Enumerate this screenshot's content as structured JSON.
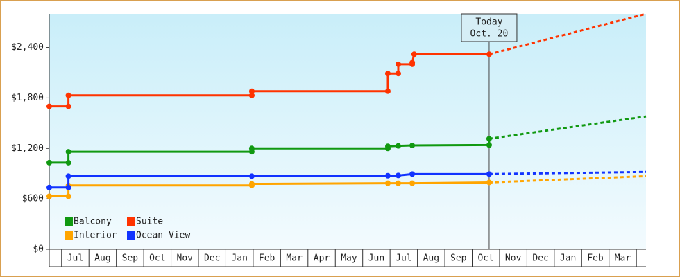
{
  "chart_data": {
    "type": "line",
    "annotation": {
      "x": 15.62,
      "lines": [
        "Today",
        "Oct. 20"
      ]
    },
    "xlim": [
      -0.45,
      21.35
    ],
    "xticks": [
      {
        "value": 0.5,
        "label": "Jul"
      },
      {
        "value": 1.5,
        "label": "Aug"
      },
      {
        "value": 2.5,
        "label": "Sep"
      },
      {
        "value": 3.5,
        "label": "Oct"
      },
      {
        "value": 4.5,
        "label": "Nov"
      },
      {
        "value": 5.5,
        "label": "Dec"
      },
      {
        "value": 6.5,
        "label": "Jan"
      },
      {
        "value": 7.5,
        "label": "Feb"
      },
      {
        "value": 8.5,
        "label": "Mar"
      },
      {
        "value": 9.5,
        "label": "Apr"
      },
      {
        "value": 10.5,
        "label": "May"
      },
      {
        "value": 11.5,
        "label": "Jun"
      },
      {
        "value": 12.5,
        "label": "Jul"
      },
      {
        "value": 13.5,
        "label": "Aug"
      },
      {
        "value": 14.5,
        "label": "Sep"
      },
      {
        "value": 15.5,
        "label": "Oct"
      },
      {
        "value": 16.5,
        "label": "Nov"
      },
      {
        "value": 17.5,
        "label": "Dec"
      },
      {
        "value": 18.5,
        "label": "Jan"
      },
      {
        "value": 19.5,
        "label": "Feb"
      },
      {
        "value": 20.5,
        "label": "Mar"
      }
    ],
    "ylim": [
      0,
      2800
    ],
    "yticks": [
      {
        "value": 0,
        "label": "$0"
      },
      {
        "value": 600,
        "label": "$600"
      },
      {
        "value": 1200,
        "label": "$1,200"
      },
      {
        "value": 1800,
        "label": "$1,800"
      },
      {
        "value": 2400,
        "label": "$2,400"
      }
    ],
    "legend": "bottom-left",
    "series": [
      {
        "name": "Balcony",
        "color": "#119911",
        "x": [
          -0.45,
          0.25,
          0.25,
          6.95,
          6.95,
          11.92,
          11.92,
          12.3,
          12.81,
          15.62,
          15.62
        ],
        "values": [
          1030,
          1030,
          1160,
          1160,
          1200,
          1200,
          1225,
          1230,
          1235,
          1240,
          1315
        ],
        "projection": {
          "x": [
            15.62,
            21.35
          ],
          "values": [
            1315,
            1580
          ]
        }
      },
      {
        "name": "Suite",
        "color": "#ff3300",
        "x": [
          -0.45,
          0.25,
          0.25,
          6.95,
          6.95,
          11.92,
          11.92,
          12.3,
          12.3,
          12.81,
          12.81,
          12.88,
          15.62
        ],
        "values": [
          1700,
          1700,
          1830,
          1830,
          1880,
          1880,
          2090,
          2090,
          2200,
          2200,
          2220,
          2320,
          2320
        ],
        "projection": {
          "x": [
            15.62,
            21.35
          ],
          "values": [
            2320,
            2800
          ]
        }
      },
      {
        "name": "Interior",
        "color": "#ffa500",
        "x": [
          -0.45,
          0.25,
          0.25,
          6.95,
          6.95,
          11.92,
          12.3,
          12.81,
          15.62
        ],
        "values": [
          630,
          630,
          760,
          760,
          778,
          785,
          785,
          785,
          795
        ],
        "projection": {
          "x": [
            15.62,
            21.35
          ],
          "values": [
            795,
            870
          ]
        }
      },
      {
        "name": "Ocean View",
        "color": "#1133ff",
        "x": [
          -0.45,
          0.25,
          0.25,
          6.95,
          11.92,
          12.3,
          12.81,
          15.62
        ],
        "values": [
          735,
          735,
          870,
          870,
          875,
          878,
          895,
          895
        ],
        "projection": {
          "x": [
            15.62,
            21.35
          ],
          "values": [
            895,
            920
          ]
        }
      }
    ]
  }
}
